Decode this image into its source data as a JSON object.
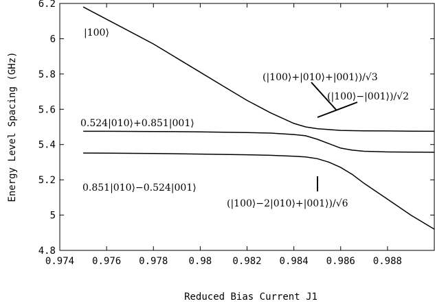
{
  "chart_data": {
    "type": "line",
    "xlabel": "Reduced Bias Current J1",
    "ylabel": "Energy Level Spacing (GHz)",
    "xlim": [
      0.974,
      0.99
    ],
    "ylim": [
      4.8,
      6.2
    ],
    "x_ticks": [
      "0.974",
      "0.976",
      "0.978",
      "0.98",
      "0.982",
      "0.984",
      "0.986",
      "0.988"
    ],
    "y_ticks": [
      "4.8",
      "5",
      "5.2",
      "5.4",
      "5.6",
      "5.8",
      "6",
      "6.2"
    ],
    "grid": false,
    "series": [
      {
        "name": "",
        "x": [
          0.975,
          0.976,
          0.977,
          0.978,
          0.979,
          0.98,
          0.981,
          0.982,
          0.983,
          0.984,
          0.9845,
          0.985,
          0.9855,
          0.986,
          0.987,
          0.988,
          0.989,
          0.99
        ],
        "y": [
          6.18,
          6.11,
          6.04,
          5.97,
          5.89,
          5.81,
          5.73,
          5.65,
          5.58,
          5.52,
          5.5,
          5.49,
          5.485,
          5.48,
          5.478,
          5.477,
          5.476,
          5.475
        ]
      },
      {
        "name": "",
        "x": [
          0.975,
          0.976,
          0.978,
          0.98,
          0.982,
          0.983,
          0.984,
          0.9845,
          0.985,
          0.9855,
          0.986,
          0.9865,
          0.987,
          0.988,
          0.989,
          0.99
        ],
        "y": [
          5.475,
          5.475,
          5.474,
          5.472,
          5.468,
          5.465,
          5.457,
          5.45,
          5.43,
          5.405,
          5.38,
          5.368,
          5.362,
          5.358,
          5.357,
          5.356
        ]
      },
      {
        "name": "",
        "x": [
          0.975,
          0.976,
          0.978,
          0.98,
          0.982,
          0.983,
          0.984,
          0.9845,
          0.985,
          0.9855,
          0.986,
          0.9865,
          0.987,
          0.988,
          0.989,
          0.99
        ],
        "y": [
          5.352,
          5.351,
          5.349,
          5.346,
          5.342,
          5.339,
          5.334,
          5.33,
          5.32,
          5.3,
          5.27,
          5.23,
          5.18,
          5.09,
          5.0,
          4.92
        ]
      }
    ],
    "annotations": [
      "|100⟩",
      "(|100⟩+|010⟩+|001⟩)/√3",
      "(|100⟩−|001⟩)/√2",
      "0.524|010⟩+0.851|001⟩",
      "0.851|010⟩−0.524|001⟩",
      "(|100⟩−2|010⟩+|001⟩)/√6"
    ]
  }
}
